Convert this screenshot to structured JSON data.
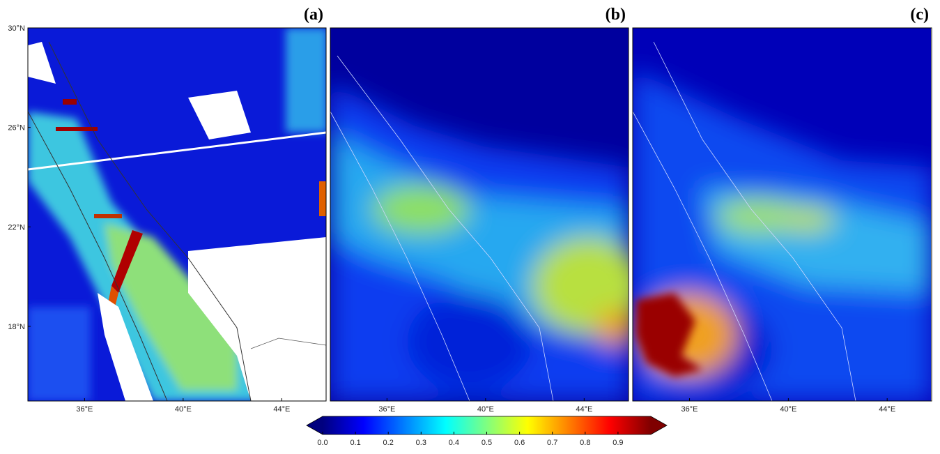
{
  "panels": [
    {
      "label": "(a)"
    },
    {
      "label": "(b)"
    },
    {
      "label": "(c)"
    }
  ],
  "lat_lim": [
    15,
    30
  ],
  "lat_ticks": [
    {
      "value": 30,
      "label": "30°N"
    },
    {
      "value": 26,
      "label": "26°N"
    },
    {
      "value": 22,
      "label": "22°N"
    },
    {
      "value": 18,
      "label": "18°N"
    }
  ],
  "lon_lim": [
    33.7,
    45.8
  ],
  "lon_ticks": [
    {
      "value": 36,
      "label": "36°E"
    },
    {
      "value": 40,
      "label": "40°E"
    },
    {
      "value": 44,
      "label": "44°E"
    }
  ],
  "colorbar": {
    "lim": [
      0,
      1
    ],
    "extend": "both",
    "ticks": [
      {
        "value": 0,
        "label": "0.0"
      },
      0.1,
      0.2,
      0.3,
      0.4,
      0.5,
      0.6,
      0.7,
      0.8,
      0.9
    ],
    "colors": [
      "#00007f",
      "#0000ff",
      "#00ffff",
      "#ffff00",
      "#ff0000",
      "#7f0000"
    ]
  }
}
